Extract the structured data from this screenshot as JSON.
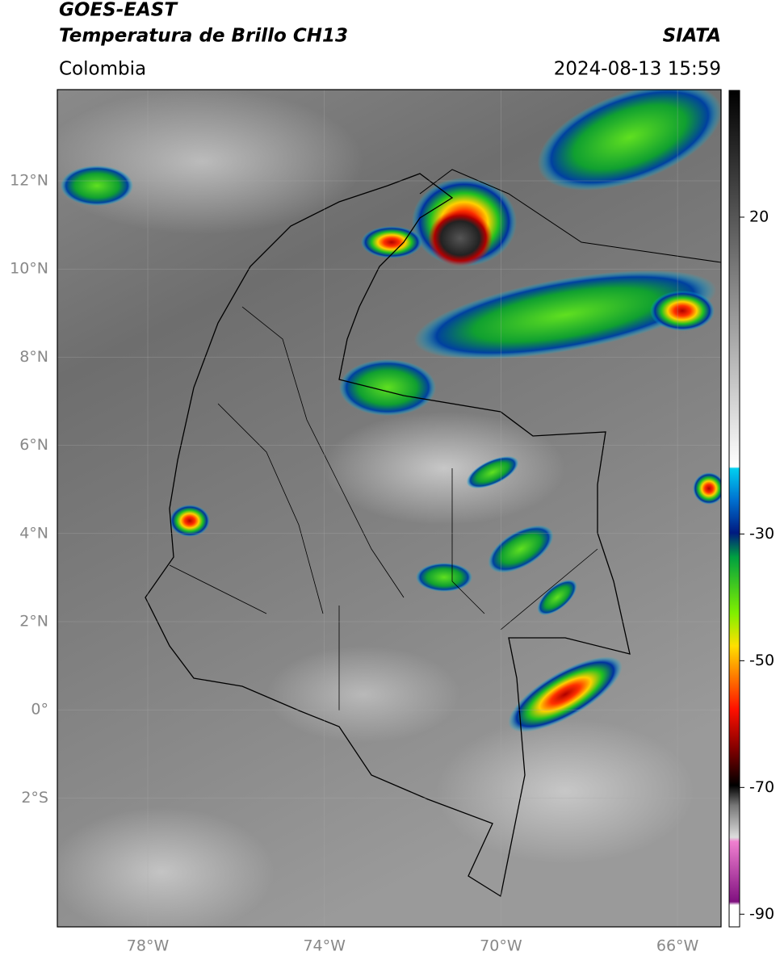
{
  "header": {
    "satellite": "GOES-EAST",
    "product": "Temperatura de Brillo CH13",
    "region": "Colombia",
    "source": "SIATA",
    "timestamp": "2024-08-13 15:59"
  },
  "map": {
    "lat_labels": [
      "12°N",
      "10°N",
      "8°N",
      "6°N",
      "4°N",
      "2°N",
      "0°",
      "2°S"
    ],
    "lon_labels": [
      "78°W",
      "74°W",
      "70°W",
      "66°W"
    ]
  },
  "colorbar": {
    "range": [
      40,
      -92
    ],
    "ticks": [
      20,
      -30,
      -50,
      -70,
      -90
    ]
  }
}
